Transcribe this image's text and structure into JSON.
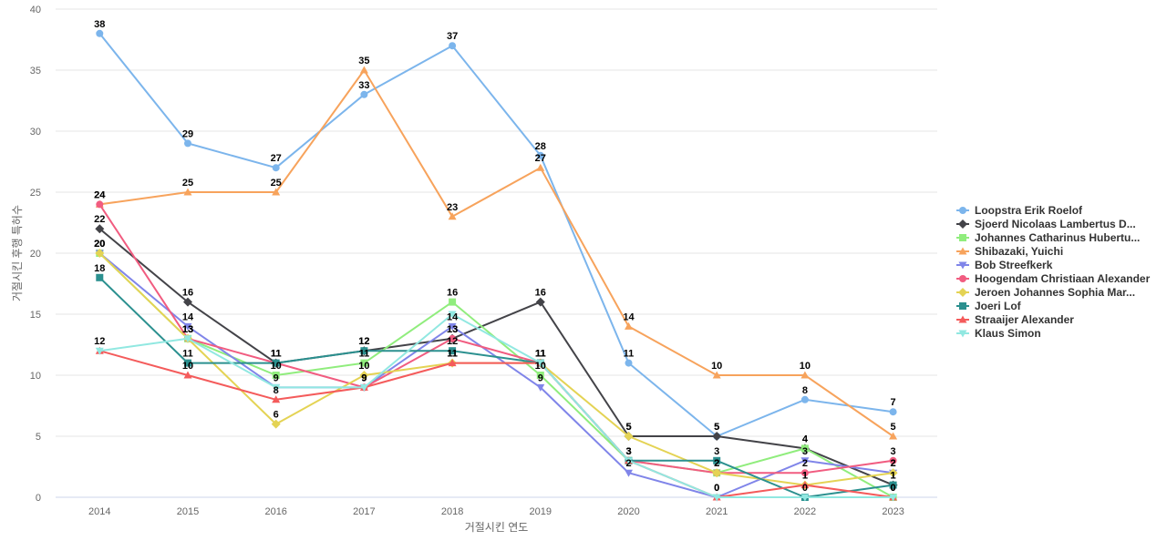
{
  "chart_data": {
    "type": "line",
    "xlabel": "거절시킨 연도",
    "ylabel": "거절시킨 후행 특허수",
    "x": [
      "2014",
      "2015",
      "2016",
      "2017",
      "2018",
      "2019",
      "2020",
      "2021",
      "2022",
      "2023"
    ],
    "ylim": [
      0,
      40
    ],
    "yticks": [
      0,
      5,
      10,
      15,
      20,
      25,
      30,
      35,
      40
    ],
    "grid": true,
    "legend": "right",
    "series": [
      {
        "name": "Loopstra Erik Roelof",
        "color": "#7cb5ec",
        "marker": "circle",
        "values": [
          38,
          29,
          27,
          33,
          37,
          28,
          11,
          5,
          8,
          7
        ],
        "labeled": true
      },
      {
        "name": "Sjoerd Nicolaas Lambertus D...",
        "color": "#434348",
        "marker": "diamond",
        "values": [
          22,
          16,
          11,
          12,
          13,
          16,
          5,
          5,
          4,
          1
        ],
        "labeled": true
      },
      {
        "name": "Johannes Catharinus Hubertu...",
        "color": "#90ed7d",
        "marker": "square",
        "values": [
          20,
          13,
          10,
          11,
          16,
          10,
          3,
          2,
          4,
          0
        ],
        "labeled": true
      },
      {
        "name": "Shibazaki, Yuichi",
        "color": "#f7a35c",
        "marker": "triangle",
        "values": [
          24,
          25,
          25,
          35,
          23,
          27,
          14,
          10,
          10,
          5
        ],
        "labeled": true
      },
      {
        "name": "Bob Streefkerk",
        "color": "#8085e9",
        "marker": "triangle-down",
        "values": [
          20,
          14,
          9,
          9,
          14,
          9,
          2,
          0,
          3,
          2
        ],
        "labeled": true
      },
      {
        "name": "Hoogendam Christiaan Alexander",
        "color": "#f15c80",
        "marker": "circle",
        "values": [
          24,
          13,
          11,
          9,
          13,
          11,
          3,
          2,
          2,
          3
        ],
        "labeled": true
      },
      {
        "name": "Jeroen Johannes Sophia Mar...",
        "color": "#e4d354",
        "marker": "diamond",
        "values": [
          20,
          13,
          6,
          10,
          11,
          11,
          5,
          2,
          1,
          2
        ],
        "labeled": true
      },
      {
        "name": "Joeri Lof",
        "color": "#2b908f",
        "marker": "square",
        "values": [
          18,
          11,
          11,
          12,
          12,
          11,
          3,
          3,
          0,
          1
        ],
        "labeled": true
      },
      {
        "name": "Straaijer Alexander",
        "color": "#f45b5b",
        "marker": "triangle",
        "values": [
          12,
          10,
          8,
          9,
          11,
          11,
          3,
          0,
          1,
          0
        ],
        "labeled": true
      },
      {
        "name": "Klaus Simon",
        "color": "#91e8e1",
        "marker": "triangle-down",
        "values": [
          12,
          13,
          9,
          9,
          15,
          11,
          3,
          0,
          0,
          0
        ],
        "labeled": false
      }
    ]
  }
}
